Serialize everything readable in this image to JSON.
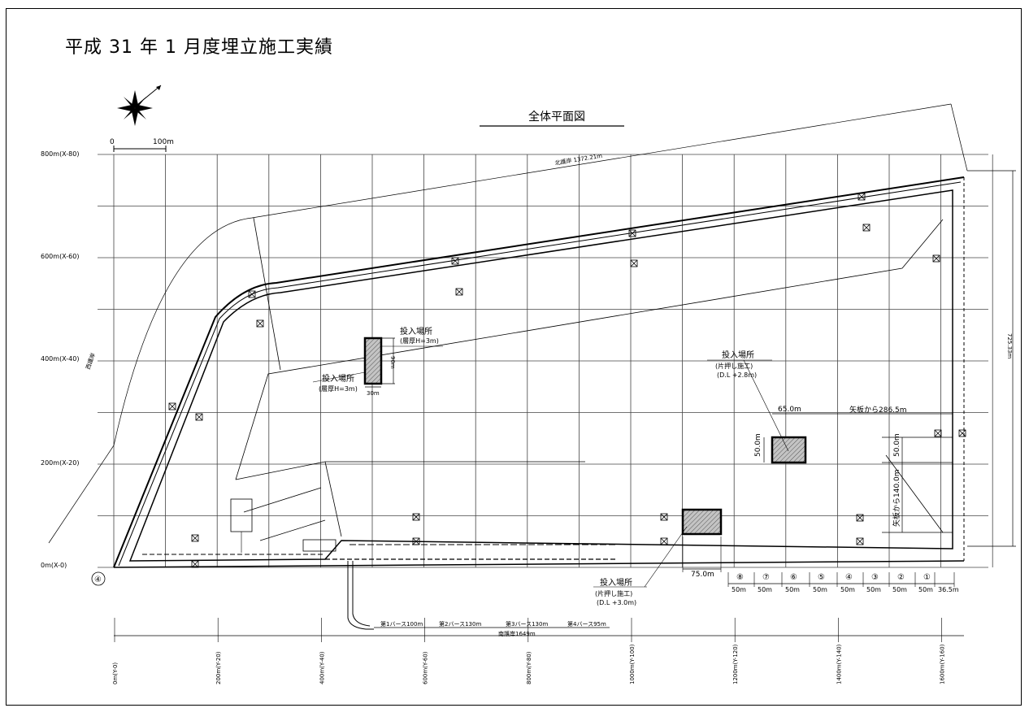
{
  "title": "平成 31 年 1 月度埋立施工実績",
  "plan_title": "全体平面図",
  "scale": {
    "zero": "0",
    "hundred": "100m"
  },
  "y_axis_labels": [
    "800m(X-80)",
    "600m(X-60)",
    "400m(X-40)",
    "200m(X-20)",
    "0m(X-0)"
  ],
  "x_axis_labels": [
    "0m(Y-0)",
    "200m(Y-20)",
    "400m(Y-40)",
    "600m(Y-60)",
    "800m(Y-80)",
    "1000m(Y-100)",
    "1200m(Y-120)",
    "1400m(Y-140)",
    "1600m(Y-160)"
  ],
  "point_marker": "④",
  "dimensions": {
    "north_revetment": "北護岸 1372.21m",
    "east_height": "725.33m",
    "west_revetment": "西護岸",
    "south_revetment": "南護岸1649m",
    "berths": [
      "第1バース100m",
      "第2バース130m",
      "第3バース130m",
      "第4バース95m"
    ]
  },
  "dump_sites": [
    {
      "title": "投入場所",
      "note": "(層厚H=3m)",
      "title2": "投入場所",
      "note2": "(層厚H=3m)",
      "width": "30m",
      "height": "90m"
    },
    {
      "title": "投入場所",
      "method": "(片押し施工)",
      "level": "(D.L +2.8m)",
      "width": "65.0m",
      "height": "50.0m",
      "from_sheet": "矢板から286.5m",
      "height2": "50.0m",
      "from_sheet2": "矢板から140.0m"
    },
    {
      "title": "投入場所",
      "method": "(片押し施工)",
      "level": "(D.L +3.0m)",
      "width": "75.0m"
    }
  ],
  "segments": [
    {
      "num": "⑧",
      "len": "50m"
    },
    {
      "num": "⑦",
      "len": "50m"
    },
    {
      "num": "⑥",
      "len": "50m"
    },
    {
      "num": "⑤",
      "len": "50m"
    },
    {
      "num": "④",
      "len": "50m"
    },
    {
      "num": "③",
      "len": "50m"
    },
    {
      "num": "②",
      "len": "50m"
    },
    {
      "num": "①",
      "len": "50m"
    },
    {
      "num": "",
      "len": "36.5m"
    }
  ],
  "colors": {
    "line": "#000000",
    "fill_hatch": "#9a9a9a",
    "grid": "#555555"
  }
}
